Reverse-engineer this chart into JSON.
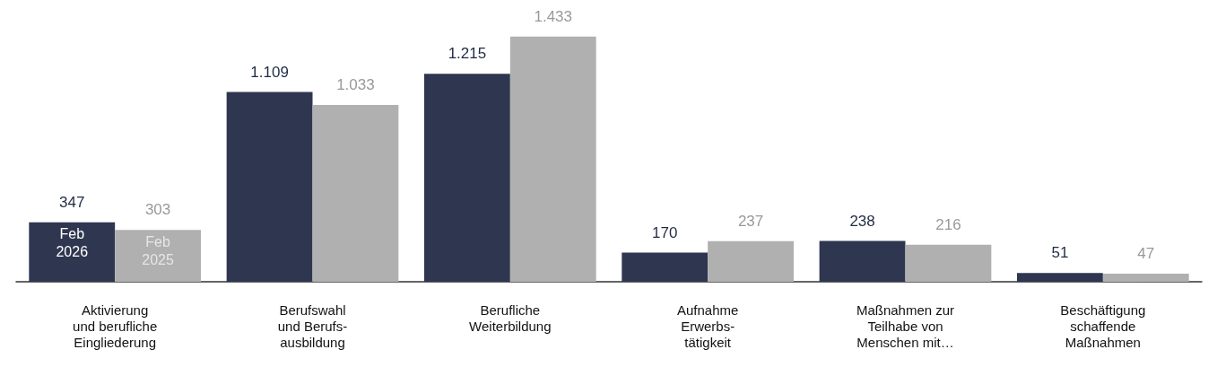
{
  "chart_data": {
    "type": "bar",
    "categories": [
      "Aktivierung\nund berufliche\nEingliederung",
      "Berufswahl\nund Berufs-\nausbildung",
      "Berufliche\nWeiterbildung",
      "Aufnahme\nErwerbs-\ntätigkeit",
      "Maßnahmen zur\nTeilhabe von\nMenschen mit…",
      "Beschäftigung\nschaffende\nMaßnahmen"
    ],
    "series": [
      {
        "name": "Feb 2026",
        "color": "#2e3650",
        "values": [
          347,
          1109,
          1215,
          170,
          238,
          51
        ],
        "value_labels": [
          "347",
          "1.109",
          "1.215",
          "170",
          "238",
          "51"
        ]
      },
      {
        "name": "Feb 2025",
        "color": "#b0b0b0",
        "values": [
          303,
          1033,
          1433,
          237,
          216,
          47
        ],
        "value_labels": [
          "303",
          "1.033",
          "1.433",
          "237",
          "216",
          "47"
        ]
      }
    ],
    "grid": false
  }
}
